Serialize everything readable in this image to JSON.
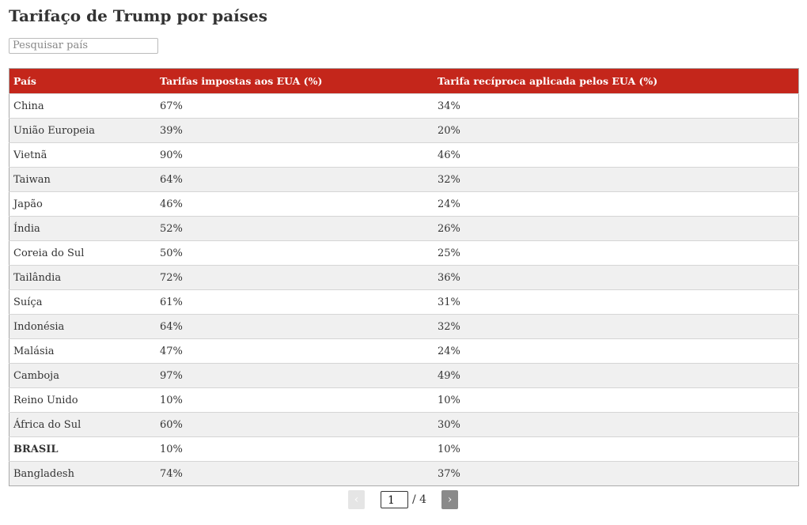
{
  "header": {
    "title": "Tarifaço de Trump por países"
  },
  "search": {
    "placeholder": "Pesquisar país"
  },
  "table": {
    "columns": [
      "País",
      "Tarifas impostas aos EUA (%)",
      "Tarifa recíproca aplicada pelos EUA (%)"
    ],
    "rows": [
      [
        "China",
        "67%",
        "34%"
      ],
      [
        "União Europeia",
        "39%",
        "20%"
      ],
      [
        "Vietnã",
        "90%",
        "46%"
      ],
      [
        "Taiwan",
        "64%",
        "32%"
      ],
      [
        "Japão",
        "46%",
        "24%"
      ],
      [
        "Índia",
        "52%",
        "26%"
      ],
      [
        "Coreia do Sul",
        "50%",
        "25%"
      ],
      [
        "Tailândia",
        "72%",
        "36%"
      ],
      [
        "Suíça",
        "61%",
        "31%"
      ],
      [
        "Indonésia",
        "64%",
        "32%"
      ],
      [
        "Malásia",
        "47%",
        "24%"
      ],
      [
        "Camboja",
        "97%",
        "49%"
      ],
      [
        "Reino Unido",
        "10%",
        "10%"
      ],
      [
        "África do Sul",
        "60%",
        "30%"
      ],
      [
        "BRASIL",
        "10%",
        "10%"
      ],
      [
        "Bangladesh",
        "74%",
        "37%"
      ]
    ]
  },
  "pagination": {
    "prev": "‹",
    "page": "1",
    "total": "/ 4",
    "next": "›"
  }
}
